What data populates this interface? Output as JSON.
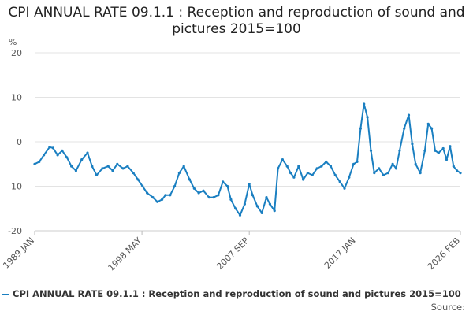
{
  "chart_data": {
    "type": "line",
    "title": "CPI ANNUAL RATE 09.1.1 : Reception and reproduction of sound and pictures 2015=100",
    "ylabel": "%",
    "ylim": [
      -20,
      20
    ],
    "yticks": [
      20,
      10,
      0,
      -10,
      -20
    ],
    "xlim": [
      1989.0,
      2026.1
    ],
    "xticks": [
      {
        "value": 1989.0,
        "label": "1989 JAN"
      },
      {
        "value": 1998.35,
        "label": "1998 MAY"
      },
      {
        "value": 2007.7,
        "label": "2007 SEP"
      },
      {
        "value": 2017.0,
        "label": "2017 JAN"
      },
      {
        "value": 2026.1,
        "label": "2026 FEB"
      }
    ],
    "legend_position": "bottom",
    "series": [
      {
        "name": "CPI ANNUAL RATE 09.1.1 : Reception and reproduction of sound and pictures 2015=100",
        "color": "#1a7fc1",
        "x": [
          1989.0,
          1989.4,
          1989.8,
          1990.3,
          1990.6,
          1991.0,
          1991.4,
          1991.8,
          1992.2,
          1992.6,
          1993.1,
          1993.6,
          1994.0,
          1994.4,
          1994.9,
          1995.4,
          1995.8,
          1996.2,
          1996.7,
          1997.1,
          1997.6,
          1998.0,
          1998.4,
          1998.8,
          1999.3,
          1999.7,
          2000.1,
          2000.4,
          2000.8,
          2001.2,
          2001.6,
          2002.0,
          2002.5,
          2002.9,
          2003.3,
          2003.7,
          2004.2,
          2004.6,
          2005.0,
          2005.4,
          2005.8,
          2006.1,
          2006.5,
          2006.9,
          2007.3,
          2007.7,
          2008.0,
          2008.4,
          2008.8,
          2009.2,
          2009.5,
          2009.9,
          2010.2,
          2010.6,
          2011.0,
          2011.3,
          2011.6,
          2012.0,
          2012.4,
          2012.8,
          2013.2,
          2013.6,
          2014.0,
          2014.4,
          2014.8,
          2015.2,
          2015.6,
          2016.0,
          2016.4,
          2016.8,
          2017.1,
          2017.4,
          2017.7,
          2018.0,
          2018.3,
          2018.6,
          2019.0,
          2019.4,
          2019.8,
          2020.2,
          2020.5,
          2020.8,
          2021.2,
          2021.6,
          2021.9,
          2022.2,
          2022.6,
          2023.0,
          2023.3,
          2023.6,
          2023.9,
          2024.2,
          2024.6,
          2024.9,
          2025.2,
          2025.5,
          2025.8,
          2026.1
        ],
        "values": [
          -5,
          -4.5,
          -3,
          -1.2,
          -1.4,
          -3,
          -2,
          -3.5,
          -5.5,
          -6.5,
          -4,
          -2.5,
          -5.5,
          -7.5,
          -6,
          -5.5,
          -6.5,
          -5,
          -6,
          -5.5,
          -7,
          -8.5,
          -10,
          -11.5,
          -12.5,
          -13.5,
          -13,
          -12,
          -12,
          -10,
          -7,
          -5.5,
          -8.5,
          -10.5,
          -11.5,
          -11,
          -12.5,
          -12.5,
          -12,
          -9,
          -10,
          -13,
          -15,
          -16.5,
          -14,
          -9.5,
          -12,
          -14.5,
          -16,
          -12.5,
          -14,
          -15.5,
          -6,
          -4,
          -5.5,
          -7,
          -8,
          -5.5,
          -8.5,
          -7,
          -7.5,
          -6,
          -5.5,
          -4.5,
          -5.5,
          -7.5,
          -9,
          -10.5,
          -8,
          -5,
          -4.5,
          3,
          8.5,
          5.5,
          -2,
          -7,
          -6,
          -7.5,
          -7,
          -5,
          -6,
          -2,
          3,
          6,
          -0.5,
          -5,
          -7,
          -2,
          4,
          3,
          -2,
          -2.5,
          -1.5,
          -4,
          -1,
          -5.5,
          -6.5,
          -7
        ]
      }
    ]
  },
  "legend": {
    "label": "CPI ANNUAL RATE 09.1.1 : Reception and reproduction of sound and pictures 2015=100"
  },
  "source": {
    "label": "Source:"
  }
}
